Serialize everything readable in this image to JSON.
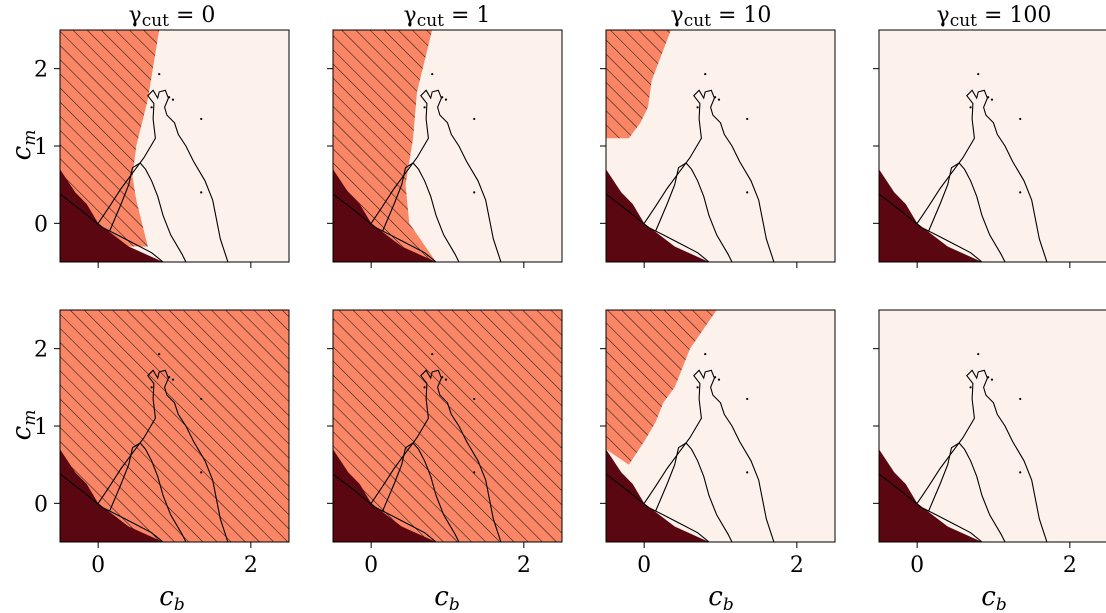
{
  "figure": {
    "columns": [
      {
        "gamma": "γ",
        "sub": "cut",
        "eq": " = 0"
      },
      {
        "gamma": "γ",
        "sub": "cut",
        "eq": " = 1"
      },
      {
        "gamma": "γ",
        "sub": "cut",
        "eq": " = 10"
      },
      {
        "gamma": "γ",
        "sub": "cut",
        "eq": " = 100"
      }
    ],
    "xlabel": {
      "main": "c",
      "sub": "b"
    },
    "ylabel": {
      "main": "c",
      "sub": "m"
    },
    "colors": {
      "background": "#fdf1ec",
      "hatched_region": "#fb8666",
      "dark_region": "#5b0711",
      "contour": "#000000"
    }
  },
  "chart_data": {
    "type": "heatmap",
    "layout": "2 rows x 4 columns of region maps",
    "xlim": [
      -0.5,
      2.5
    ],
    "ylim": [
      -0.5,
      2.5
    ],
    "xticks": [
      0,
      2
    ],
    "yticks": [
      0,
      1,
      2
    ],
    "xtick_labels": [
      "0",
      "2"
    ],
    "ytick_labels": [
      "0",
      "1",
      "2"
    ],
    "regions": {
      "dark_wedge": [
        [
          -0.5,
          0.7
        ],
        [
          -0.3,
          0.4
        ],
        [
          -0.15,
          0.25
        ],
        [
          0.0,
          0.0
        ],
        [
          0.4,
          -0.3
        ],
        [
          0.85,
          -0.5
        ],
        [
          -0.5,
          -0.5
        ]
      ],
      "contours": [
        [
          [
            -0.5,
            0.38
          ],
          [
            -0.2,
            0.15
          ],
          [
            0.05,
            -0.05
          ],
          [
            0.25,
            -0.15
          ],
          [
            0.45,
            -0.25
          ],
          [
            0.7,
            -0.38
          ],
          [
            0.85,
            -0.5
          ]
        ],
        [
          [
            0.0,
            0.0
          ],
          [
            0.15,
            0.22
          ],
          [
            0.3,
            0.45
          ],
          [
            0.45,
            0.65
          ],
          [
            0.6,
            0.85
          ],
          [
            0.75,
            1.1
          ],
          [
            0.72,
            1.35
          ],
          [
            0.73,
            1.55
          ],
          [
            0.65,
            1.65
          ],
          [
            0.72,
            1.72
          ],
          [
            0.78,
            1.62
          ],
          [
            0.8,
            1.7
          ],
          [
            0.88,
            1.72
          ],
          [
            0.92,
            1.62
          ],
          [
            0.87,
            1.5
          ],
          [
            0.9,
            1.4
          ],
          [
            1.0,
            1.3
          ],
          [
            1.05,
            1.15
          ],
          [
            1.15,
            1.0
          ],
          [
            1.25,
            0.8
          ],
          [
            1.4,
            0.55
          ],
          [
            1.5,
            0.3
          ],
          [
            1.55,
            0.05
          ],
          [
            1.6,
            -0.2
          ],
          [
            1.7,
            -0.5
          ]
        ],
        [
          [
            0.15,
            -0.1
          ],
          [
            0.3,
            0.25
          ],
          [
            0.4,
            0.5
          ],
          [
            0.45,
            0.72
          ],
          [
            0.55,
            0.78
          ],
          [
            0.62,
            0.7
          ],
          [
            0.7,
            0.55
          ],
          [
            0.78,
            0.35
          ],
          [
            0.85,
            0.1
          ],
          [
            0.95,
            -0.15
          ],
          [
            1.1,
            -0.4
          ],
          [
            1.15,
            -0.5
          ]
        ]
      ],
      "dots": [
        [
          0.8,
          1.93
        ],
        [
          0.93,
          1.63
        ],
        [
          0.98,
          1.6
        ],
        [
          0.7,
          1.5
        ],
        [
          1.35,
          0.4
        ],
        [
          1.35,
          1.35
        ]
      ],
      "hatched_by_panel": [
        [
          [
            -0.5,
            2.5
          ],
          [
            0.8,
            2.5
          ],
          [
            0.65,
            1.6
          ],
          [
            0.5,
            1.0
          ],
          [
            0.45,
            0.6
          ],
          [
            0.5,
            0.3
          ],
          [
            0.65,
            -0.3
          ],
          [
            -0.5,
            -0.3
          ]
        ],
        [
          [
            -0.5,
            2.5
          ],
          [
            0.8,
            2.5
          ],
          [
            0.6,
            1.7
          ],
          [
            0.55,
            1.1
          ],
          [
            0.45,
            0.5
          ],
          [
            0.5,
            0.0
          ],
          [
            0.85,
            -0.5
          ],
          [
            -0.5,
            -0.5
          ]
        ],
        [
          [
            -0.5,
            2.5
          ],
          [
            0.35,
            2.5
          ],
          [
            0.1,
            1.85
          ],
          [
            0.05,
            1.5
          ],
          [
            -0.05,
            1.3
          ],
          [
            -0.2,
            1.1
          ],
          [
            -0.5,
            1.1
          ]
        ],
        [],
        [
          [
            -0.5,
            2.5
          ],
          [
            2.5,
            2.5
          ],
          [
            2.5,
            -0.5
          ],
          [
            -0.5,
            -0.5
          ]
        ],
        [
          [
            -0.5,
            2.5
          ],
          [
            2.5,
            2.5
          ],
          [
            2.5,
            -0.5
          ],
          [
            -0.5,
            -0.5
          ]
        ],
        [
          [
            -0.5,
            2.5
          ],
          [
            0.95,
            2.5
          ],
          [
            0.6,
            2.0
          ],
          [
            0.4,
            1.5
          ],
          [
            0.25,
            1.3
          ],
          [
            0.15,
            1.05
          ],
          [
            0.0,
            0.8
          ],
          [
            -0.2,
            0.5
          ],
          [
            -0.5,
            0.7
          ]
        ],
        []
      ]
    }
  }
}
